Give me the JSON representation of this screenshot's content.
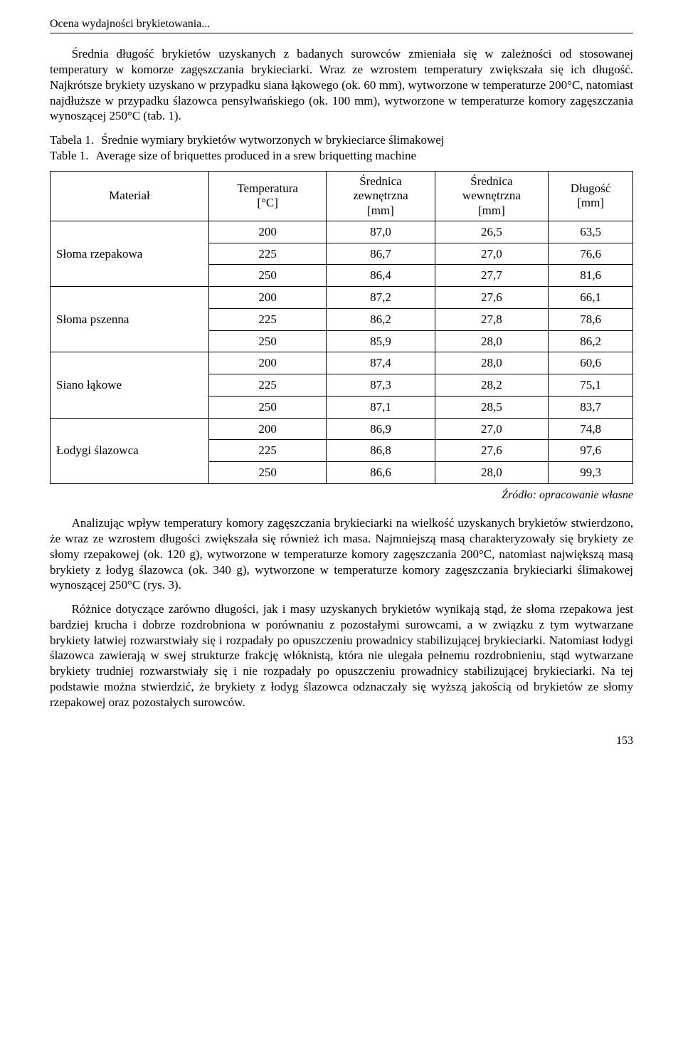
{
  "running_head": "Ocena wydajności brykietowania...",
  "para1": "Średnia długość brykietów uzyskanych z badanych surowców zmieniała się w zależności od stosowanej temperatury w komorze zagęszczania brykieciarki. Wraz ze wzrostem temperatury zwiększała się ich długość. Najkrótsze brykiety uzyskano w przypadku siana łąkowego (ok. 60 mm), wytworzone w temperaturze 200°C, natomiast najdłuższe w przypadku ślazowca pensylwańskiego (ok. 100 mm), wytworzone w temperaturze komory zagęszczania wynoszącej 250°C (tab. 1).",
  "caption": {
    "pl_label": "Tabela 1.",
    "pl_text": "Średnie wymiary brykietów wytworzonych w brykieciarce ślimakowej",
    "en_label": "Table 1.",
    "en_text": "Average size of briquettes produced in a srew briquetting machine"
  },
  "table": {
    "headers": {
      "material": "Materiał",
      "temp": "Temperatura\n[°C]",
      "d_out": "Średnica\nzewnętrzna\n[mm]",
      "d_in": "Średnica\nwewnętrzna\n[mm]",
      "len": "Długość\n[mm]"
    },
    "groups": [
      {
        "material": "Słoma rzepakowa",
        "rows": [
          {
            "t": "200",
            "do": "87,0",
            "di": "26,5",
            "l": "63,5"
          },
          {
            "t": "225",
            "do": "86,7",
            "di": "27,0",
            "l": "76,6"
          },
          {
            "t": "250",
            "do": "86,4",
            "di": "27,7",
            "l": "81,6"
          }
        ]
      },
      {
        "material": "Słoma pszenna",
        "rows": [
          {
            "t": "200",
            "do": "87,2",
            "di": "27,6",
            "l": "66,1"
          },
          {
            "t": "225",
            "do": "86,2",
            "di": "27,8",
            "l": "78,6"
          },
          {
            "t": "250",
            "do": "85,9",
            "di": "28,0",
            "l": "86,2"
          }
        ]
      },
      {
        "material": "Siano łąkowe",
        "rows": [
          {
            "t": "200",
            "do": "87,4",
            "di": "28,0",
            "l": "60,6"
          },
          {
            "t": "225",
            "do": "87,3",
            "di": "28,2",
            "l": "75,1"
          },
          {
            "t": "250",
            "do": "87,1",
            "di": "28,5",
            "l": "83,7"
          }
        ]
      },
      {
        "material": "Łodygi ślazowca",
        "rows": [
          {
            "t": "200",
            "do": "86,9",
            "di": "27,0",
            "l": "74,8"
          },
          {
            "t": "225",
            "do": "86,8",
            "di": "27,6",
            "l": "97,6"
          },
          {
            "t": "250",
            "do": "86,6",
            "di": "28,0",
            "l": "99,3"
          }
        ]
      }
    ],
    "source": "Źródło: opracowanie własne"
  },
  "para2": "Analizując wpływ temperatury komory zagęszczania brykieciarki na wielkość uzyskanych brykietów stwierdzono, że wraz ze wzrostem długości zwiększała się również ich masa. Najmniejszą masą charakteryzowały się brykiety ze słomy rzepakowej (ok. 120 g), wytworzone w temperaturze komory zagęszczania 200°C, natomiast największą masą brykiety z łodyg ślazowca (ok. 340 g), wytworzone w temperaturze komory zagęszczania brykieciarki ślimakowej wynoszącej 250°C (rys. 3).",
  "para3": "Różnice dotyczące zarówno długości, jak i masy uzyskanych brykietów wynikają stąd, że słoma rzepakowa jest bardziej krucha i dobrze rozdrobniona w porównaniu z pozostałymi surowcami, a w związku z tym wytwarzane brykiety łatwiej rozwarstwiały się i rozpadały po opuszczeniu prowadnicy stabilizującej brykieciarki. Natomiast łodygi ślazowca zawierają w swej strukturze frakcję włóknistą, która nie ulegała pełnemu rozdrobnieniu, stąd wytwarzane brykiety trudniej rozwarstwiały się i nie rozpadały po opuszczeniu prowadnicy stabilizującej brykieciarki. Na tej podstawie można stwierdzić, że brykiety z łodyg ślazowca odznaczały się wyższą jakością od brykietów ze słomy rzepakowej oraz pozostałych surowców.",
  "page_number": "153"
}
